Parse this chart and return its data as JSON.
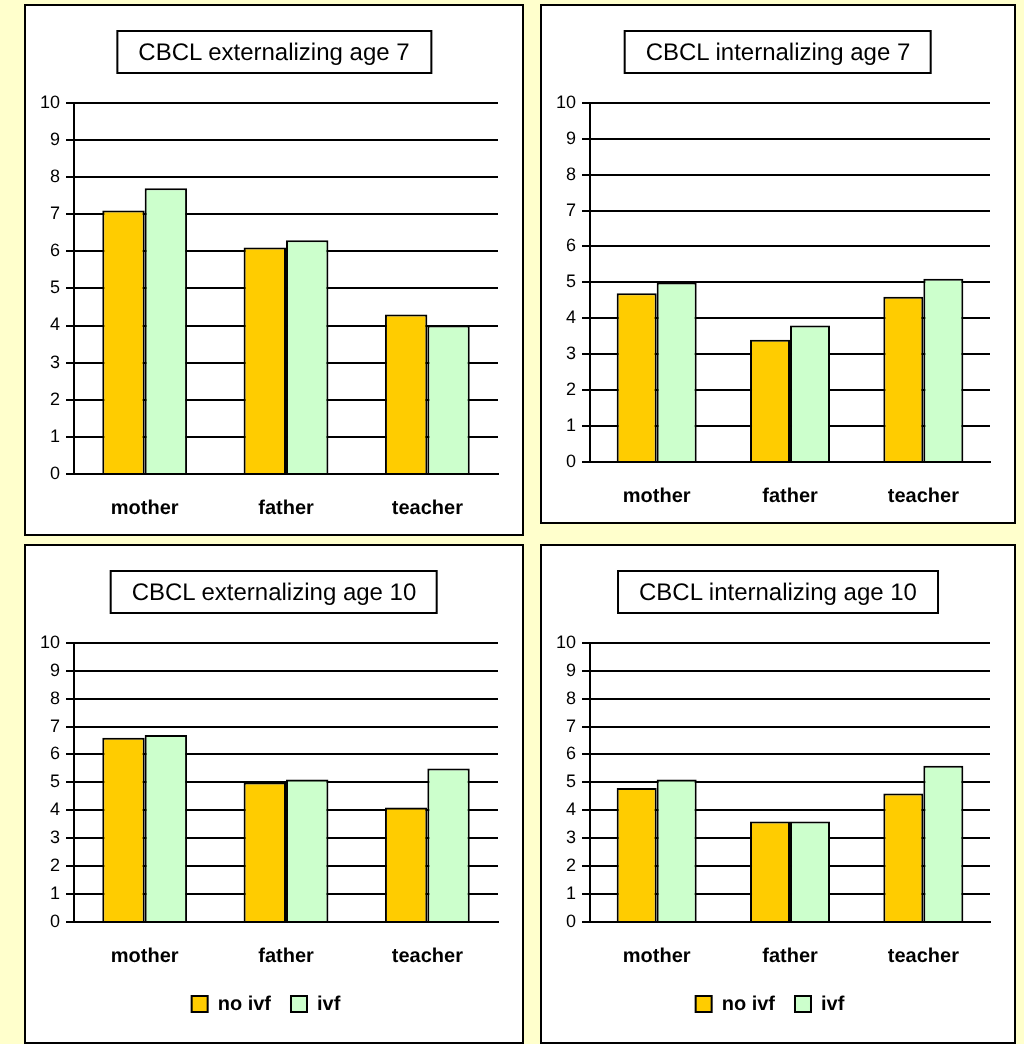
{
  "chart_data": [
    {
      "type": "bar",
      "title": "CBCL externalizing age 7",
      "categories": [
        "mother",
        "father",
        "teacher"
      ],
      "series": [
        {
          "color": "#ffcc00",
          "values": [
            7.1,
            6.1,
            4.3
          ]
        },
        {
          "color": "#ccffcc",
          "values": [
            7.7,
            6.3,
            4.0
          ]
        }
      ],
      "ylim": [
        0,
        10
      ],
      "yticks": [
        0,
        1,
        2,
        3,
        4,
        5,
        6,
        7,
        8,
        9,
        10
      ],
      "grid": "y"
    },
    {
      "type": "bar",
      "title": "CBCL internalizing age 7",
      "categories": [
        "mother",
        "father",
        "teacher"
      ],
      "series": [
        {
          "color": "#ffcc00",
          "values": [
            4.7,
            3.4,
            4.6
          ]
        },
        {
          "color": "#ccffcc",
          "values": [
            5.0,
            3.8,
            5.1
          ]
        }
      ],
      "ylim": [
        0,
        10
      ],
      "yticks": [
        0,
        1,
        2,
        3,
        4,
        5,
        6,
        7,
        8,
        9,
        10
      ],
      "grid": "y"
    },
    {
      "type": "bar",
      "title": "CBCL externalizing age 10",
      "categories": [
        "mother",
        "father",
        "teacher"
      ],
      "series": [
        {
          "name": "no ivf",
          "color": "#ffcc00",
          "values": [
            6.6,
            5.0,
            4.1
          ]
        },
        {
          "name": "ivf",
          "color": "#ccffcc",
          "values": [
            6.7,
            5.1,
            5.5
          ]
        }
      ],
      "ylim": [
        0,
        10
      ],
      "yticks": [
        0,
        1,
        2,
        3,
        4,
        5,
        6,
        7,
        8,
        9,
        10
      ],
      "grid": "y",
      "legend": "bottom"
    },
    {
      "type": "bar",
      "title": "CBCL internalizing age 10",
      "categories": [
        "mother",
        "father",
        "teacher"
      ],
      "series": [
        {
          "name": "no ivf",
          "color": "#ffcc00",
          "values": [
            4.8,
            3.6,
            4.6
          ]
        },
        {
          "name": "ivf",
          "color": "#ccffcc",
          "values": [
            5.1,
            3.6,
            5.6
          ]
        }
      ],
      "ylim": [
        0,
        10
      ],
      "yticks": [
        0,
        1,
        2,
        3,
        4,
        5,
        6,
        7,
        8,
        9,
        10
      ],
      "grid": "y",
      "legend": "bottom"
    }
  ]
}
